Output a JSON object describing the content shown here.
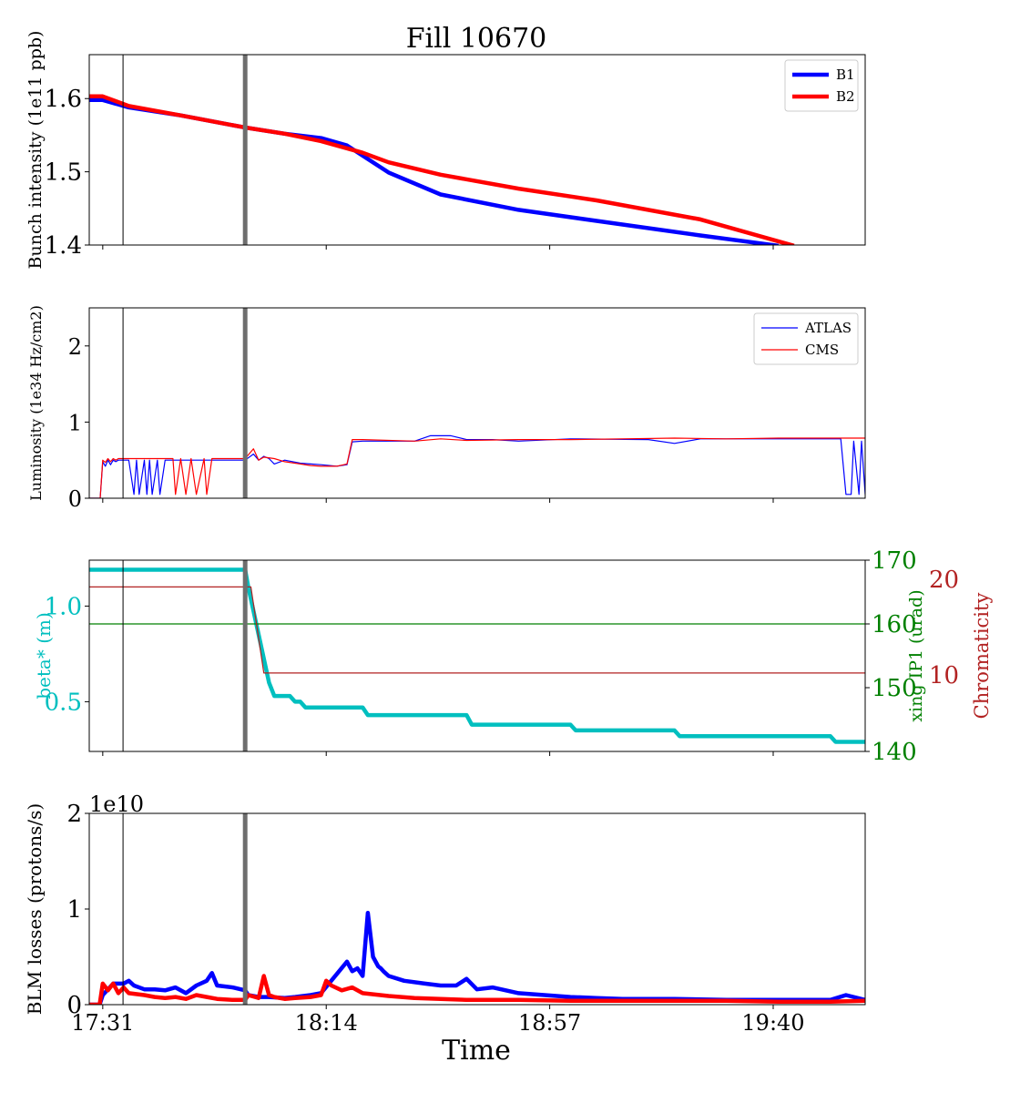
{
  "figure": {
    "title": "Fill 10670",
    "xlabel": "Time",
    "time_ticks": [
      "17:31",
      "18:14",
      "18:57",
      "19:40"
    ],
    "x_range_minutes": [
      -2.6,
      146.7
    ],
    "x_tick_minutes": [
      0,
      43,
      86,
      129
    ],
    "marker_lines": {
      "thin": 3.9,
      "thick": 27.4
    }
  },
  "colors": {
    "blue": "#0000ff",
    "red": "#ff0000",
    "cyan": "#00bfbf",
    "green": "#008000",
    "darkred": "#b22222",
    "grey": "#6e6e6e"
  },
  "chart_data": [
    {
      "type": "line",
      "ylabel": "Bunch intensity (1e11 ppb)",
      "ylim": [
        1.4,
        1.66
      ],
      "yticks": [
        1.4,
        1.5,
        1.6
      ],
      "legend": "top-right",
      "series": [
        {
          "name": "B1",
          "color": "#0000ff",
          "x": [
            -2.6,
            0,
            5,
            15,
            27,
            35,
            42,
            47,
            50,
            55,
            65,
            80,
            95,
            115,
            130
          ],
          "y": [
            1.598,
            1.598,
            1.588,
            1.577,
            1.561,
            1.552,
            1.546,
            1.536,
            1.522,
            1.499,
            1.469,
            1.448,
            1.433,
            1.413,
            1.399
          ]
        },
        {
          "name": "B2",
          "color": "#ff0000",
          "x": [
            -2.6,
            0,
            5,
            15,
            27,
            35,
            42,
            50,
            55,
            65,
            80,
            95,
            115,
            133
          ],
          "y": [
            1.603,
            1.603,
            1.59,
            1.577,
            1.561,
            1.552,
            1.542,
            1.526,
            1.513,
            1.496,
            1.477,
            1.461,
            1.435,
            1.399
          ]
        }
      ]
    },
    {
      "type": "line",
      "ylabel": "Luminosity (1e34 Hz/cm2)",
      "ylim": [
        0,
        2.5
      ],
      "yticks": [
        0,
        1,
        2
      ],
      "legend": "top-right",
      "series": [
        {
          "name": "ATLAS",
          "color": "#0000ff",
          "x": [
            -2.6,
            -0.5,
            0,
            0.5,
            1,
            1.5,
            2,
            2.5,
            3,
            4,
            5,
            6,
            6.5,
            7,
            8,
            8.5,
            9,
            9.5,
            10.5,
            11,
            12,
            13,
            15,
            20,
            27.4,
            29,
            30,
            31,
            32,
            33,
            35,
            38,
            40,
            42,
            45,
            47,
            48,
            50,
            60,
            63,
            67,
            70,
            75,
            80,
            90,
            105,
            110,
            115,
            125,
            140,
            142,
            143,
            144,
            144.5,
            145.5,
            146,
            146.7
          ],
          "y": [
            0,
            0,
            0.48,
            0.42,
            0.5,
            0.44,
            0.5,
            0.48,
            0.5,
            0.5,
            0.5,
            0.05,
            0.5,
            0.05,
            0.5,
            0.05,
            0.5,
            0.05,
            0.5,
            0.05,
            0.5,
            0.5,
            0.5,
            0.5,
            0.5,
            0.58,
            0.5,
            0.55,
            0.52,
            0.45,
            0.5,
            0.46,
            0.45,
            0.44,
            0.42,
            0.44,
            0.74,
            0.75,
            0.75,
            0.82,
            0.82,
            0.77,
            0.77,
            0.75,
            0.78,
            0.77,
            0.72,
            0.78,
            0.78,
            0.78,
            0.78,
            0.05,
            0.05,
            0.75,
            0.05,
            0.75,
            0.05
          ]
        },
        {
          "name": "CMS",
          "color": "#ff0000",
          "x": [
            -2.6,
            -0.5,
            0,
            0.5,
            1,
            1.5,
            2,
            2.5,
            3,
            12,
            13.5,
            14,
            15,
            16,
            17,
            18,
            19.5,
            20,
            21,
            27.4,
            29,
            30,
            31,
            33,
            35,
            38,
            40,
            42,
            45,
            47,
            48,
            50,
            60,
            65,
            70,
            80,
            90,
            100,
            110,
            120,
            130,
            140,
            146.7
          ],
          "y": [
            0,
            0,
            0.5,
            0.47,
            0.52,
            0.48,
            0.52,
            0.5,
            0.52,
            0.52,
            0.52,
            0.05,
            0.52,
            0.05,
            0.52,
            0.05,
            0.52,
            0.05,
            0.52,
            0.52,
            0.65,
            0.5,
            0.54,
            0.52,
            0.48,
            0.45,
            0.43,
            0.42,
            0.42,
            0.45,
            0.77,
            0.77,
            0.75,
            0.78,
            0.76,
            0.77,
            0.77,
            0.78,
            0.79,
            0.78,
            0.79,
            0.79,
            0.79
          ]
        }
      ]
    },
    {
      "type": "line",
      "ylabel": "beta* (m)",
      "ylim": [
        0.24,
        1.24
      ],
      "yticks": [
        0.5,
        1.0
      ],
      "y2label": "xing IP1 (urad)",
      "y2lim": [
        140,
        170
      ],
      "y2ticks": [
        140,
        150,
        160,
        170
      ],
      "y3label": "Chromaticity",
      "y3lim": [
        2,
        22
      ],
      "y3ticks": [
        10,
        20
      ],
      "series": [
        {
          "name": "beta*",
          "color": "#00bfbf",
          "axis": "left",
          "x": [
            -2.6,
            27.4,
            28,
            30,
            32,
            33,
            36,
            37,
            38,
            39,
            40,
            41,
            42,
            50,
            51,
            70,
            71,
            90,
            91,
            110,
            111,
            140,
            141,
            146.7
          ],
          "y": [
            1.19,
            1.19,
            1.1,
            0.85,
            0.6,
            0.53,
            0.53,
            0.5,
            0.5,
            0.47,
            0.47,
            0.47,
            0.47,
            0.47,
            0.43,
            0.43,
            0.38,
            0.38,
            0.35,
            0.35,
            0.32,
            0.32,
            0.29,
            0.29
          ]
        },
        {
          "name": "xing IP1",
          "color": "#008000",
          "axis": "right",
          "x": [
            -2.6,
            146.7
          ],
          "y": [
            160,
            160
          ]
        },
        {
          "name": "Chromaticity",
          "color": "#b22222",
          "axis": "right2",
          "x": [
            -2.6,
            27.4,
            27.45,
            27.5,
            28.5,
            31,
            35,
            146.7
          ],
          "y": [
            19.2,
            19.2,
            11,
            19.2,
            19.2,
            10.2,
            10.2,
            10.2
          ]
        }
      ]
    },
    {
      "type": "line",
      "ylabel": "BLM losses (protons/s)",
      "y_scale_label": "1e10",
      "ylim": [
        0,
        2
      ],
      "yticks": [
        0,
        1,
        2
      ],
      "series": [
        {
          "name": "B1",
          "color": "#0000ff",
          "x": [
            -2.6,
            -0.6,
            0,
            2,
            4,
            5,
            6,
            8,
            10,
            12,
            14,
            16,
            18,
            20,
            21,
            22,
            25,
            27.4,
            28,
            30,
            32,
            35,
            37,
            40,
            42,
            47,
            48,
            49,
            50,
            51,
            52,
            53,
            53.5,
            54,
            55,
            58,
            62,
            65,
            68,
            70,
            72,
            75,
            80,
            85,
            90,
            95,
            100,
            110,
            120,
            130,
            140,
            143,
            146.7
          ],
          "y": [
            0,
            0,
            0.1,
            0.22,
            0.22,
            0.25,
            0.2,
            0.16,
            0.16,
            0.15,
            0.18,
            0.12,
            0.2,
            0.25,
            0.33,
            0.2,
            0.18,
            0.15,
            0.1,
            0.08,
            0.08,
            0.07,
            0.08,
            0.1,
            0.12,
            0.45,
            0.35,
            0.38,
            0.3,
            0.96,
            0.5,
            0.4,
            0.38,
            0.35,
            0.3,
            0.25,
            0.22,
            0.2,
            0.2,
            0.27,
            0.16,
            0.18,
            0.12,
            0.1,
            0.08,
            0.07,
            0.06,
            0.06,
            0.05,
            0.05,
            0.05,
            0.1,
            0.05
          ]
        },
        {
          "name": "B2",
          "color": "#ff0000",
          "x": [
            -2.6,
            -0.6,
            0,
            1,
            2,
            3,
            4,
            5,
            8,
            10,
            12,
            14,
            16,
            18,
            20,
            22,
            25,
            27.4,
            28,
            30,
            31,
            32,
            33,
            35,
            37,
            40,
            42,
            43,
            44,
            46,
            48,
            50,
            55,
            60,
            70,
            80,
            90,
            100,
            110,
            120,
            130,
            140,
            146.7
          ],
          "y": [
            0,
            0,
            0.22,
            0.15,
            0.22,
            0.12,
            0.18,
            0.12,
            0.1,
            0.08,
            0.07,
            0.08,
            0.06,
            0.1,
            0.08,
            0.06,
            0.05,
            0.05,
            0.1,
            0.07,
            0.3,
            0.1,
            0.08,
            0.06,
            0.07,
            0.08,
            0.1,
            0.25,
            0.2,
            0.15,
            0.18,
            0.12,
            0.09,
            0.07,
            0.05,
            0.05,
            0.04,
            0.04,
            0.04,
            0.04,
            0.03,
            0.03,
            0.04
          ]
        }
      ]
    }
  ]
}
